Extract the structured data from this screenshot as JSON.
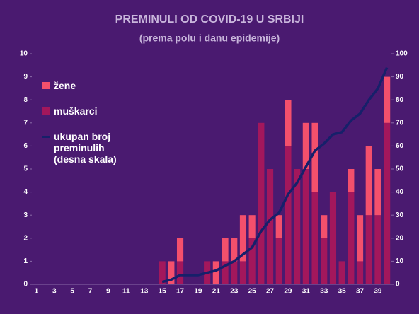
{
  "chart_data": {
    "type": "bar",
    "stacked": true,
    "title": "PREMINULI OD COVID-19 U SRBIJI",
    "subtitle": "(prema polu i danu epidemije)",
    "categories": [
      "1",
      null,
      "3",
      null,
      "5",
      null,
      "7",
      null,
      "9",
      null,
      "11",
      null,
      "13",
      null,
      "15",
      null,
      "17",
      null,
      "19",
      null,
      "21",
      null,
      "23",
      null,
      "25",
      null,
      "27",
      null,
      "29",
      null,
      "31",
      null,
      "33",
      null,
      "35",
      null,
      "37",
      null,
      "39",
      null
    ],
    "series": [
      {
        "name": "muškarci",
        "color": "#a3175c",
        "values": [
          0,
          0,
          0,
          0,
          0,
          0,
          0,
          0,
          0,
          0,
          0,
          0,
          0,
          0,
          1,
          0,
          1,
          0,
          0,
          1,
          0,
          1,
          1,
          1,
          2,
          7,
          5,
          2,
          6,
          5,
          5,
          4,
          2,
          4,
          1,
          4,
          1,
          3,
          3,
          7
        ]
      },
      {
        "name": "žene",
        "color": "#f4506c",
        "values": [
          0,
          0,
          0,
          0,
          0,
          0,
          0,
          0,
          0,
          0,
          0,
          0,
          0,
          0,
          0,
          1,
          1,
          0,
          0,
          0,
          1,
          1,
          1,
          2,
          1,
          0,
          0,
          1,
          2,
          0,
          2,
          3,
          1,
          0,
          0,
          1,
          2,
          3,
          2,
          2
        ]
      },
      {
        "name": "ukupan broj preminulih (desna skala)",
        "type": "line",
        "axis": "y2",
        "color": "#16206a",
        "values": [
          null,
          null,
          null,
          null,
          null,
          null,
          null,
          null,
          null,
          null,
          null,
          null,
          null,
          null,
          1,
          2,
          4,
          4,
          4,
          5,
          6,
          8,
          10,
          13,
          16,
          23,
          28,
          31,
          39,
          44,
          51,
          58,
          61,
          65,
          66,
          71,
          74,
          80,
          85,
          94
        ]
      }
    ],
    "legend_order": [
      1,
      0,
      2
    ],
    "ylim": [
      0,
      10
    ],
    "yticks": [
      0,
      1,
      2,
      3,
      4,
      5,
      6,
      7,
      8,
      9,
      10
    ],
    "y2lim": [
      0,
      100
    ],
    "y2ticks": [
      0,
      10,
      20,
      30,
      40,
      50,
      60,
      70,
      80,
      90,
      100
    ]
  }
}
